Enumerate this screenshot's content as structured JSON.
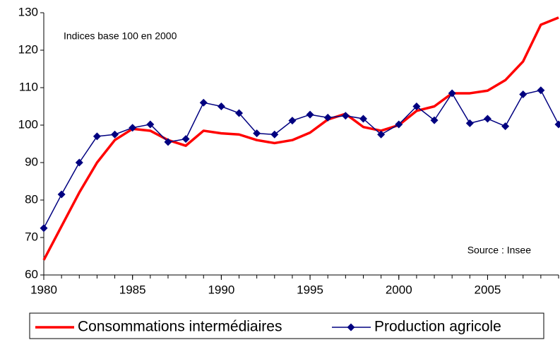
{
  "chart_data": {
    "type": "line",
    "annotations": [
      "Indices base 100 en 2000",
      "Source : Insee"
    ],
    "x": [
      1980,
      1981,
      1982,
      1983,
      1984,
      1985,
      1986,
      1987,
      1988,
      1989,
      1990,
      1991,
      1992,
      1993,
      1994,
      1995,
      1996,
      1997,
      1998,
      1999,
      2000,
      2001,
      2002,
      2003,
      2004,
      2005,
      2006,
      2007,
      2008,
      2009
    ],
    "series": [
      {
        "name": "Consommations intermédiaires",
        "color": "#ff0000",
        "marker": "none",
        "values": [
          64,
          73,
          82,
          90,
          96,
          99,
          98.5,
          96,
          94.5,
          98.5,
          97.8,
          97.5,
          96,
          95.2,
          96,
          98,
          101.5,
          103,
          99.5,
          98.5,
          100,
          103.8,
          105,
          108.5,
          108.5,
          109.2,
          112,
          117,
          126.8,
          128.7
        ]
      },
      {
        "name": "Production agricole",
        "color": "#000080",
        "marker": "diamond",
        "values": [
          72.5,
          81.5,
          90,
          97,
          97.5,
          99.3,
          100.2,
          95.5,
          96.3,
          106,
          105,
          103.2,
          97.8,
          97.5,
          101.2,
          102.8,
          102,
          102.5,
          101.7,
          97.5,
          100.2,
          105,
          101.3,
          108.5,
          100.5,
          101.7,
          99.7,
          108.2,
          109.3,
          100.2
        ]
      }
    ],
    "xlim": [
      1980,
      2009
    ],
    "xticks": [
      1980,
      1985,
      1990,
      1995,
      2000,
      2005
    ],
    "ylim": [
      60,
      130
    ],
    "yticks": [
      60,
      70,
      80,
      90,
      100,
      110,
      120,
      130
    ],
    "grid": false,
    "legend": "bottom"
  }
}
